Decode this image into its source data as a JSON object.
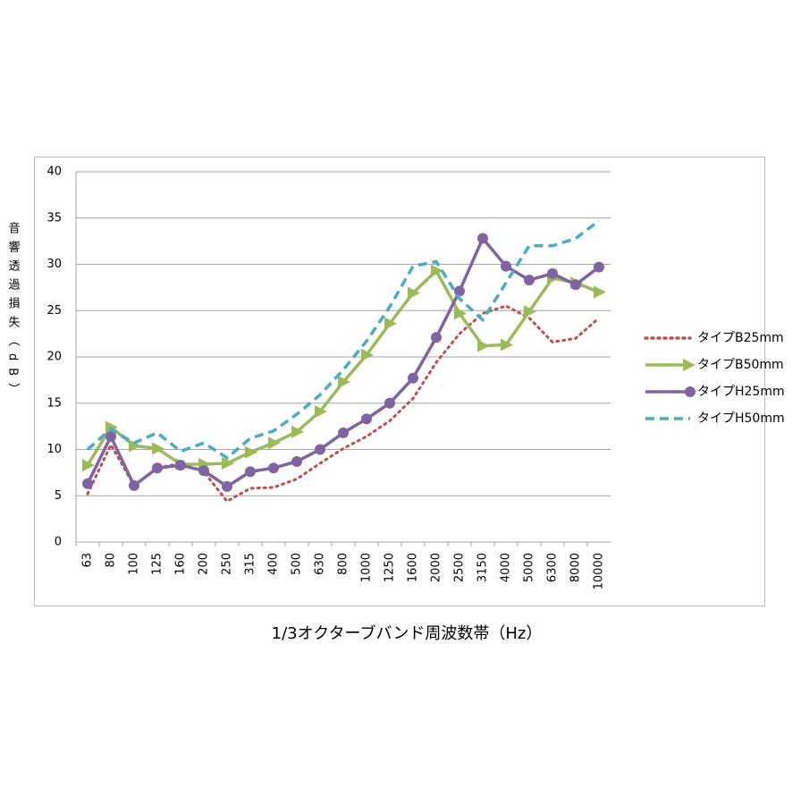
{
  "chart_data": {
    "type": "line",
    "y_label": "音響透過損失（dB）",
    "x_label": "1/3オクターブバンド周波数帯（Hz）",
    "categories": [
      "63",
      "80",
      "100",
      "125",
      "160",
      "200",
      "250",
      "315",
      "400",
      "500",
      "630",
      "800",
      "1000",
      "1250",
      "1600",
      "2000",
      "2500",
      "3150",
      "4000",
      "5000",
      "6300",
      "8000",
      "10000"
    ],
    "ylim": [
      0,
      40
    ],
    "yticks": [
      0,
      5,
      10,
      15,
      20,
      25,
      30,
      35,
      40
    ],
    "grid": true,
    "legend": "right",
    "series": [
      {
        "name": "タイプB25mm",
        "color": "#c0504d",
        "line_style": "dotted",
        "marker": "none",
        "values": [
          5.2,
          10.5,
          6.1,
          8.0,
          8.5,
          7.6,
          4.4,
          5.8,
          5.9,
          6.8,
          8.5,
          10.1,
          11.4,
          13.1,
          15.5,
          19.4,
          22.5,
          24.7,
          25.5,
          24.2,
          21.6,
          22.0,
          24.2
        ]
      },
      {
        "name": "タイプB50mm",
        "color": "#9bbb59",
        "line_style": "solid",
        "marker": "arrow",
        "values": [
          8.3,
          12.4,
          10.4,
          10.1,
          8.4,
          8.4,
          8.5,
          9.7,
          10.7,
          11.9,
          14.1,
          17.3,
          20.2,
          23.6,
          26.9,
          29.3,
          24.7,
          21.2,
          21.3,
          24.9,
          28.5,
          28.0,
          27.0
        ]
      },
      {
        "name": "タイプH25mm",
        "color": "#8064a2",
        "line_style": "solid",
        "marker": "circle",
        "values": [
          6.3,
          11.4,
          6.1,
          8.0,
          8.3,
          7.7,
          6.0,
          7.6,
          8.0,
          8.7,
          10.0,
          11.8,
          13.3,
          15.0,
          17.7,
          22.1,
          27.1,
          32.8,
          29.8,
          28.3,
          29.0,
          27.8,
          29.7
        ]
      },
      {
        "name": "タイプH50mm",
        "color": "#4bacc6",
        "line_style": "dashed",
        "marker": "none",
        "values": [
          10.0,
          12.2,
          10.7,
          11.8,
          9.8,
          10.7,
          9.1,
          11.2,
          12.0,
          13.8,
          15.9,
          18.6,
          21.7,
          25.4,
          29.8,
          30.3,
          26.3,
          24.0,
          28.0,
          32.0,
          32.0,
          32.8,
          34.7
        ]
      }
    ]
  }
}
